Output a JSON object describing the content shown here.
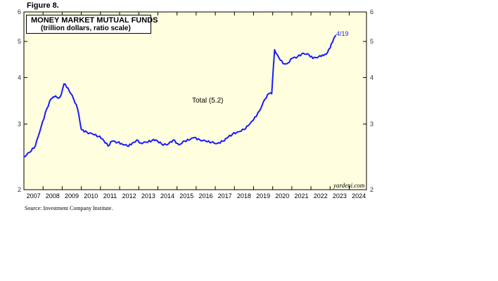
{
  "figure_label": "Figure 8.",
  "source": "Source: Investment Company Institute.",
  "watermark": "yardeni.com",
  "colors": {
    "plot_bg": "#ffffe0",
    "line": "#1a1aff",
    "frame": "#000000"
  },
  "chart_data": {
    "type": "line",
    "title": "MONEY MARKET MUTUAL FUNDS",
    "subtitle": "(trillion dollars, ratio scale)",
    "y_scale": "log",
    "ylim": [
      2,
      6
    ],
    "y_ticks": [
      2,
      3,
      4,
      5,
      6
    ],
    "x_range": [
      2007.0,
      2024.9
    ],
    "x_tick_labels": [
      "2007",
      "2008",
      "2009",
      "2010",
      "2011",
      "2012",
      "2013",
      "2014",
      "2015",
      "2016",
      "2017",
      "2018",
      "2019",
      "2020",
      "2021",
      "2022",
      "2023",
      "2024"
    ],
    "grid": false,
    "series_label": "Total (5.2)",
    "end_label": "4/19",
    "series": [
      {
        "x": [
          2007.0,
          2007.3,
          2007.6,
          2007.9,
          2008.2,
          2008.4,
          2008.6,
          2008.7,
          2008.8,
          2008.95,
          2009.1,
          2009.3,
          2009.6,
          2009.8,
          2010.0,
          2010.3,
          2010.6,
          2010.9,
          2011.1,
          2011.4,
          2011.6,
          2011.9,
          2012.1,
          2012.4,
          2012.6,
          2012.9,
          2013.1,
          2013.4,
          2013.7,
          2013.9,
          2014.2,
          2014.5,
          2014.8,
          2015.1,
          2015.4,
          2015.7,
          2015.9,
          2016.2,
          2016.5,
          2016.8,
          2017.1,
          2017.4,
          2017.6,
          2017.9,
          2018.2,
          2018.5,
          2018.8,
          2019.0,
          2019.3,
          2019.6,
          2019.8,
          2019.95,
          2020.1,
          2020.25,
          2020.4,
          2020.6,
          2020.8,
          2021.0,
          2021.3,
          2021.6,
          2021.9,
          2022.1,
          2022.4,
          2022.6,
          2022.8,
          2023.0,
          2023.2,
          2023.3
        ],
        "y": [
          2.45,
          2.52,
          2.62,
          2.95,
          3.3,
          3.5,
          3.55,
          3.55,
          3.52,
          3.6,
          3.85,
          3.75,
          3.5,
          3.3,
          2.9,
          2.85,
          2.82,
          2.78,
          2.74,
          2.62,
          2.7,
          2.68,
          2.66,
          2.62,
          2.64,
          2.72,
          2.67,
          2.68,
          2.71,
          2.72,
          2.65,
          2.64,
          2.72,
          2.64,
          2.7,
          2.73,
          2.76,
          2.72,
          2.7,
          2.68,
          2.66,
          2.7,
          2.75,
          2.82,
          2.86,
          2.9,
          3.0,
          3.08,
          3.25,
          3.5,
          3.62,
          3.62,
          4.75,
          4.6,
          4.45,
          4.35,
          4.38,
          4.5,
          4.55,
          4.65,
          4.6,
          4.5,
          4.55,
          4.6,
          4.62,
          4.8,
          5.1,
          5.2
        ]
      }
    ]
  }
}
